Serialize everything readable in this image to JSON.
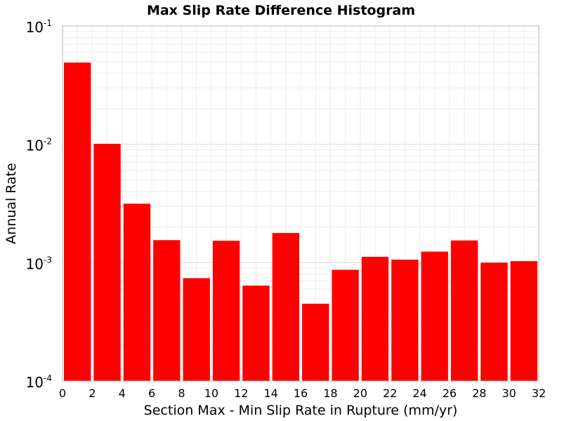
{
  "chart_data": {
    "type": "bar",
    "title": "Max Slip Rate Difference Histogram",
    "xlabel": "Section Max - Min Slip Rate in Rupture (mm/yr)",
    "ylabel": "Annual Rate",
    "yscale": "log",
    "ylim": [
      0.0001,
      0.1
    ],
    "xlim": [
      0,
      32
    ],
    "x_ticks": [
      "0",
      "2",
      "4",
      "6",
      "8",
      "10",
      "12",
      "14",
      "16",
      "18",
      "20",
      "22",
      "24",
      "26",
      "28",
      "30",
      "32"
    ],
    "y_ticks": [
      {
        "base": "10",
        "exponent": "-4"
      },
      {
        "base": "10",
        "exponent": "-3"
      },
      {
        "base": "10",
        "exponent": "-2"
      },
      {
        "base": "10",
        "exponent": "-1"
      }
    ],
    "bin_width": 2,
    "bin_starts": [
      0,
      2,
      4,
      6,
      8,
      10,
      12,
      14,
      16,
      18,
      20,
      22,
      24,
      26,
      28,
      30
    ],
    "values": [
      0.049,
      0.0101,
      0.00315,
      0.00155,
      0.00074,
      0.00153,
      0.00064,
      0.00178,
      0.00045,
      0.00087,
      0.00112,
      0.00106,
      0.00124,
      0.00154,
      0.001,
      0.00103
    ],
    "bar_color": "#ff0000",
    "grid": true,
    "legend": "none"
  }
}
